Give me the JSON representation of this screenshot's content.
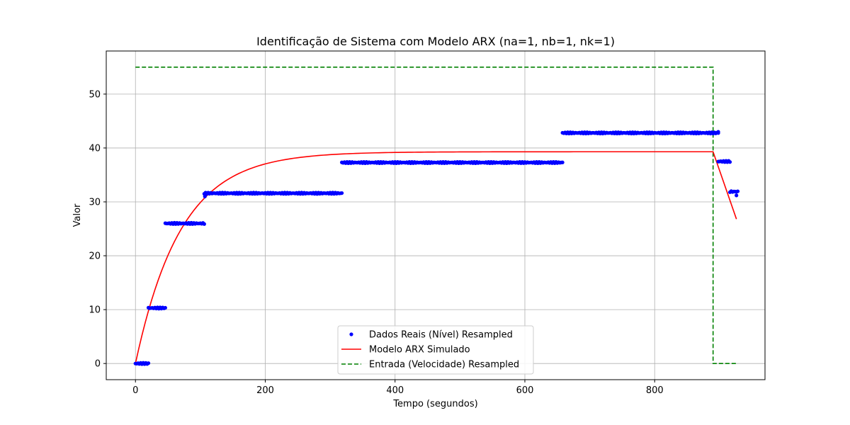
{
  "chart_data": {
    "type": "line",
    "title": "Identificação de Sistema com Modelo ARX (na=1, nb=1, nk=1)",
    "xlabel": "Tempo (segundos)",
    "ylabel": "Valor",
    "xlim": [
      -45,
      970
    ],
    "ylim": [
      -3,
      58
    ],
    "xticks": [
      0,
      200,
      400,
      600,
      800
    ],
    "yticks": [
      0,
      10,
      20,
      30,
      40,
      50
    ],
    "grid": true,
    "legend_position": "bottom-center",
    "series": [
      {
        "name": "Dados Reais (Nível) Resampled",
        "kind": "scatter",
        "color": "#0000ff",
        "segments": [
          {
            "x_start": 0,
            "x_end": 20,
            "y": 0
          },
          {
            "x_start": 20,
            "x_end": 46,
            "y": 10.3
          },
          {
            "x_start": 46,
            "x_end": 106,
            "y": 26
          },
          {
            "x_start": 106,
            "x_end": 318,
            "y": 31.6
          },
          {
            "x_start": 318,
            "x_end": 658,
            "y": 37.3
          },
          {
            "x_start": 658,
            "x_end": 898,
            "y": 42.8
          },
          {
            "x_start": 898,
            "x_end": 916,
            "y": 37.5
          },
          {
            "x_start": 916,
            "x_end": 928,
            "y": 31.9
          }
        ],
        "extra_points": [
          {
            "x": 107,
            "y": 31.0
          },
          {
            "x": 926,
            "y": 31.2
          },
          {
            "x": 898,
            "y": 43.0
          }
        ]
      },
      {
        "name": "Modelo ARX Simulado",
        "kind": "line",
        "color": "#ff0000",
        "model": {
          "steady_state": 39.3,
          "time_constant": 70,
          "x_end_rise": 890,
          "x_final": 926,
          "y_final": 26.8
        }
      },
      {
        "name": "Entrada (Velocidade) Resampled",
        "kind": "dashed-line",
        "color": "#008000",
        "x": [
          0,
          890,
          890,
          926
        ],
        "y": [
          55,
          55,
          0,
          0
        ]
      }
    ]
  }
}
